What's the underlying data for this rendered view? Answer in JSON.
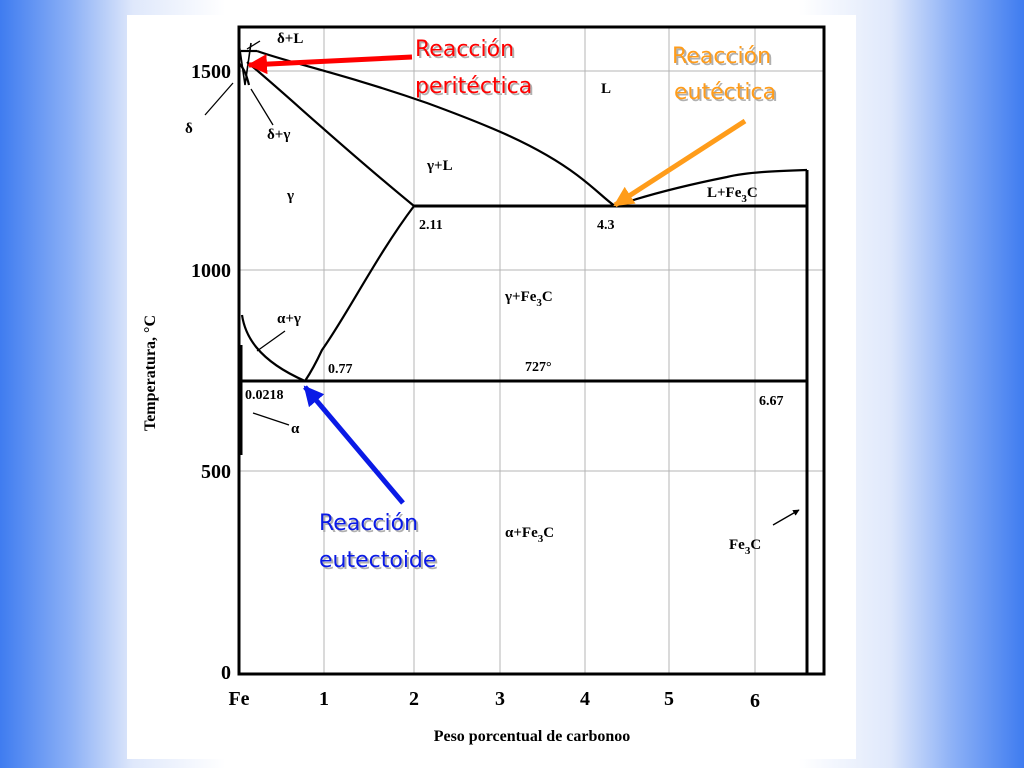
{
  "diagram": {
    "y_axis_title": "Temperatura, °C",
    "x_axis_title": "Peso porcentual de carbonoo",
    "y_ticks": [
      "1500",
      "1000",
      "500",
      "0"
    ],
    "x_ticks": [
      "Fe",
      "1",
      "2",
      "3",
      "4",
      "5",
      "6"
    ],
    "regions": {
      "delta_l": "δ+L",
      "delta": "δ",
      "delta_gamma": "δ+γ",
      "liquid": "L",
      "gamma_l": "γ+L",
      "gamma": "γ",
      "l_fe3c": "L+Fe",
      "l_fe3c_sub": "3",
      "l_fe3c_c": "C",
      "gamma_fe3c": "γ+Fe",
      "gamma_fe3c_sub": "3",
      "gamma_fe3c_c": "C",
      "alpha_gamma": "α+γ",
      "alpha": "α",
      "alpha_fe3c": "α+Fe",
      "alpha_fe3c_sub": "3",
      "alpha_fe3c_c": "C",
      "fe3c": "Fe",
      "fe3c_sub": "3",
      "fe3c_c": "C"
    },
    "values": {
      "eutectic_comp": "4.3",
      "max_gamma_comp": "2.11",
      "eutectoid_comp": "0.77",
      "eutectoid_temp": "727°",
      "alpha_max_comp": "0.0218",
      "fe3c_comp": "6.67"
    },
    "callouts": {
      "peritectic_line1": "Reacción",
      "peritectic_line2": "peritéctica",
      "eutectic_line1": "Reacción",
      "eutectic_line2": "eutéctica",
      "eutectoid_line1": "Reacción",
      "eutectoid_line2": "eutectoide"
    },
    "colors": {
      "peritectic": "#ff0000",
      "eutectic": "#ff9c1a",
      "eutectoid": "#0a1ae6",
      "lines": "#000000"
    }
  }
}
